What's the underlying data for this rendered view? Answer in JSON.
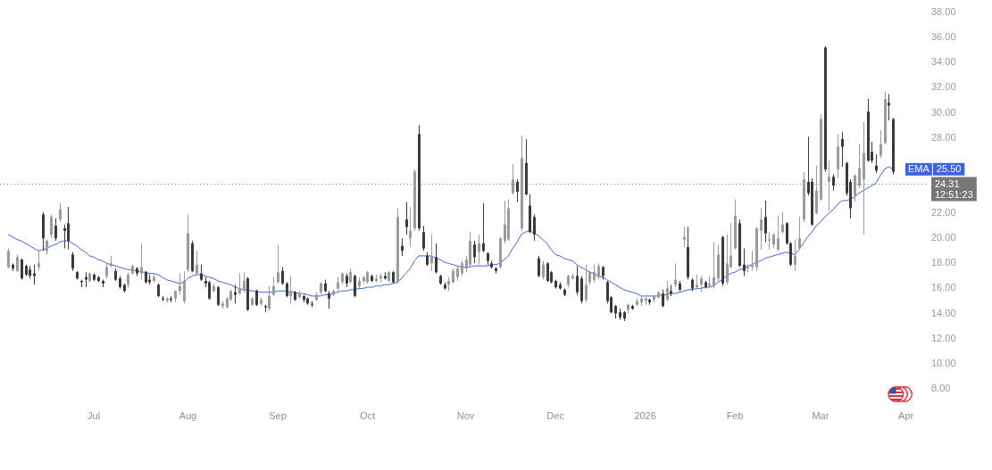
{
  "chart_data": {
    "type": "candlestick",
    "categories": [
      null,
      null,
      null,
      null,
      null,
      null,
      null,
      null,
      null,
      null,
      null,
      null,
      null,
      null,
      null,
      null,
      null,
      null,
      null,
      null,
      "Jul",
      null,
      null,
      null,
      null,
      null,
      null,
      null,
      null,
      null,
      null,
      null,
      null,
      null,
      null,
      null,
      null,
      null,
      null,
      null,
      null,
      null,
      "Aug",
      null,
      null,
      null,
      null,
      null,
      null,
      null,
      null,
      null,
      null,
      null,
      null,
      null,
      null,
      null,
      null,
      null,
      null,
      null,
      null,
      "Sep",
      null,
      null,
      null,
      null,
      null,
      null,
      null,
      null,
      null,
      null,
      null,
      null,
      null,
      null,
      null,
      null,
      null,
      null,
      null,
      null,
      "Oct",
      null,
      null,
      null,
      null,
      null,
      null,
      null,
      null,
      null,
      null,
      null,
      null,
      null,
      null,
      null,
      null,
      null,
      null,
      null,
      null,
      null,
      null,
      "Nov",
      null,
      null,
      null,
      null,
      null,
      null,
      null,
      null,
      null,
      null,
      null,
      null,
      null,
      null,
      null,
      null,
      null,
      null,
      null,
      null,
      "Dec",
      null,
      null,
      null,
      null,
      null,
      null,
      null,
      null,
      null,
      null,
      null,
      null,
      null,
      null,
      null,
      null,
      null,
      null,
      null,
      null,
      "2026",
      null,
      null,
      null,
      null,
      null,
      null,
      null,
      null,
      null,
      null,
      null,
      null,
      null,
      null,
      null,
      null,
      null,
      null,
      null,
      null,
      "Feb",
      null,
      null,
      null,
      null,
      null,
      null,
      null,
      null,
      null,
      null,
      null,
      null,
      null,
      null,
      null,
      null,
      null,
      null,
      null,
      "Mar",
      null,
      null,
      null,
      null,
      null,
      null,
      null,
      null,
      null,
      null,
      null,
      null,
      null,
      null,
      null,
      null,
      null,
      null,
      null,
      "Apr"
    ],
    "ohlc": [
      [
        17.7,
        19.2,
        17.6,
        19.0
      ],
      [
        17.9,
        18.0,
        17.4,
        17.6
      ],
      [
        17.4,
        18.7,
        17.3,
        18.5
      ],
      [
        18.3,
        18.4,
        16.7,
        16.8
      ],
      [
        17.8,
        17.9,
        17.0,
        17.1
      ],
      [
        17.5,
        17.8,
        16.8,
        17.0
      ],
      [
        17.2,
        17.9,
        16.3,
        17.0
      ],
      [
        17.7,
        19.0,
        17.4,
        18.0
      ],
      [
        21.9,
        22.1,
        19.0,
        20.0
      ],
      [
        19.0,
        19.9,
        18.7,
        19.8
      ],
      [
        20.3,
        21.9,
        20.0,
        21.7
      ],
      [
        21.0,
        21.6,
        19.8,
        20.0
      ],
      [
        21.5,
        22.8,
        21.3,
        22.3
      ],
      [
        20.8,
        21.1,
        19.2,
        20.6
      ],
      [
        21.2,
        22.5,
        19.1,
        19.8
      ],
      [
        18.7,
        18.9,
        17.4,
        17.6
      ],
      [
        17.3,
        17.4,
        16.7,
        16.8
      ],
      [
        16.6,
        16.7,
        16.1,
        16.5
      ],
      [
        16.9,
        17.3,
        16.1,
        16.7
      ],
      [
        16.6,
        17.3,
        16.5,
        17.2
      ],
      [
        17.1,
        17.2,
        16.6,
        16.7
      ],
      [
        16.9,
        17.0,
        16.5,
        16.6
      ],
      [
        16.6,
        16.7,
        16.1,
        16.4
      ],
      [
        17.0,
        18.0,
        16.8,
        17.7
      ],
      [
        17.8,
        18.6,
        17.7,
        18.0
      ],
      [
        17.4,
        17.6,
        16.6,
        16.7
      ],
      [
        16.8,
        17.0,
        16.0,
        16.1
      ],
      [
        16.3,
        16.4,
        15.7,
        15.8
      ],
      [
        16.3,
        17.3,
        16.0,
        17.1
      ],
      [
        17.2,
        17.9,
        17.1,
        17.8
      ],
      [
        17.6,
        17.7,
        17.0,
        17.2
      ],
      [
        17.2,
        19.6,
        16.7,
        17.7
      ],
      [
        17.3,
        17.4,
        16.4,
        16.5
      ],
      [
        16.7,
        17.1,
        16.3,
        16.5
      ],
      [
        16.6,
        17.1,
        16.5,
        16.9
      ],
      [
        16.3,
        16.4,
        15.3,
        15.4
      ],
      [
        15.2,
        15.4,
        15.0,
        15.1
      ],
      [
        15.0,
        15.3,
        14.9,
        15.2
      ],
      [
        15.2,
        15.4,
        14.9,
        15.1
      ],
      [
        15.2,
        15.8,
        14.9,
        15.8
      ],
      [
        15.8,
        17.2,
        15.5,
        16.2
      ],
      [
        15.0,
        17.4,
        14.8,
        16.6
      ],
      [
        17.5,
        21.9,
        17.3,
        20.4
      ],
      [
        19.6,
        19.8,
        17.3,
        17.4
      ],
      [
        17.2,
        19.0,
        17.1,
        17.9
      ],
      [
        17.2,
        17.9,
        16.6,
        16.7
      ],
      [
        16.6,
        16.9,
        16.1,
        16.4
      ],
      [
        16.5,
        16.6,
        15.1,
        15.2
      ],
      [
        15.8,
        16.4,
        15.7,
        16.2
      ],
      [
        16.1,
        16.2,
        14.6,
        14.7
      ],
      [
        14.6,
        15.0,
        14.4,
        14.8
      ],
      [
        14.5,
        15.3,
        14.4,
        15.2
      ],
      [
        15.1,
        15.9,
        15.0,
        15.8
      ],
      [
        15.7,
        16.3,
        14.8,
        15.5
      ],
      [
        15.6,
        17.2,
        15.5,
        16.0
      ],
      [
        15.8,
        17.3,
        15.7,
        16.6
      ],
      [
        16.8,
        16.9,
        14.2,
        14.3
      ],
      [
        14.7,
        15.3,
        14.6,
        15.2
      ],
      [
        15.8,
        15.9,
        14.6,
        14.7
      ],
      [
        14.8,
        15.3,
        14.6,
        15.1
      ],
      [
        14.6,
        14.7,
        14.1,
        14.5
      ],
      [
        14.4,
        16.2,
        14.2,
        15.4
      ],
      [
        15.5,
        16.9,
        15.4,
        16.2
      ],
      [
        16.5,
        19.5,
        16.4,
        17.3
      ],
      [
        17.4,
        17.7,
        16.3,
        16.4
      ],
      [
        16.4,
        16.5,
        15.3,
        15.4
      ],
      [
        15.4,
        17.0,
        14.8,
        15.8
      ],
      [
        15.7,
        15.8,
        15.0,
        15.1
      ],
      [
        15.3,
        15.8,
        15.2,
        15.6
      ],
      [
        15.4,
        15.5,
        14.9,
        15.1
      ],
      [
        15.2,
        15.3,
        14.7,
        14.8
      ],
      [
        14.8,
        15.0,
        14.5,
        14.7
      ],
      [
        15.1,
        15.7,
        15.0,
        15.5
      ],
      [
        15.7,
        16.5,
        15.5,
        16.4
      ],
      [
        16.4,
        16.7,
        15.7,
        15.8
      ],
      [
        15.6,
        15.8,
        14.4,
        15.2
      ],
      [
        15.5,
        15.9,
        15.4,
        15.8
      ],
      [
        16.0,
        16.9,
        15.8,
        16.5
      ],
      [
        16.5,
        17.3,
        16.3,
        17.2
      ],
      [
        17.0,
        17.2,
        16.1,
        16.4
      ],
      [
        16.5,
        17.6,
        16.4,
        17.3
      ],
      [
        17.0,
        17.1,
        15.3,
        15.4
      ],
      [
        16.2,
        16.9,
        16.0,
        16.6
      ],
      [
        16.6,
        17.0,
        16.4,
        16.9
      ],
      [
        16.5,
        17.4,
        16.4,
        17.3
      ],
      [
        17.0,
        17.1,
        16.5,
        16.6
      ],
      [
        16.6,
        17.1,
        16.5,
        16.8
      ],
      [
        16.8,
        17.2,
        16.5,
        17.0
      ],
      [
        17.0,
        17.3,
        16.7,
        16.8
      ],
      [
        16.6,
        17.4,
        16.5,
        17.3
      ],
      [
        17.3,
        17.4,
        16.4,
        16.5
      ],
      [
        16.5,
        22.4,
        16.4,
        21.7
      ],
      [
        19.4,
        20.0,
        18.6,
        19.0
      ],
      [
        21.5,
        22.9,
        20.3,
        20.9
      ],
      [
        20.0,
        22.5,
        19.3,
        20.6
      ],
      [
        20.8,
        25.5,
        20.6,
        25.3
      ],
      [
        28.3,
        29.0,
        20.6,
        20.8
      ],
      [
        20.5,
        21.0,
        19.0,
        19.2
      ],
      [
        18.6,
        18.9,
        17.8,
        17.9
      ],
      [
        18.0,
        20.3,
        17.4,
        18.6
      ],
      [
        18.5,
        19.6,
        17.2,
        17.3
      ],
      [
        17.0,
        17.1,
        16.3,
        16.4
      ],
      [
        16.3,
        16.5,
        15.9,
        16.0
      ],
      [
        16.3,
        16.9,
        15.8,
        16.6
      ],
      [
        16.5,
        17.6,
        16.4,
        17.4
      ],
      [
        16.9,
        17.8,
        16.6,
        17.6
      ],
      [
        17.2,
        18.2,
        17.0,
        18.0
      ],
      [
        17.6,
        18.6,
        17.3,
        18.3
      ],
      [
        17.9,
        20.5,
        17.7,
        19.8
      ],
      [
        19.5,
        19.8,
        18.0,
        18.5
      ],
      [
        18.9,
        20.3,
        17.9,
        19.6
      ],
      [
        19.6,
        22.8,
        18.9,
        19.0
      ],
      [
        18.8,
        18.9,
        17.9,
        18.2
      ],
      [
        18.0,
        18.2,
        17.6,
        17.7
      ],
      [
        17.6,
        17.7,
        17.2,
        17.4
      ],
      [
        17.7,
        20.1,
        17.6,
        20.0
      ],
      [
        19.8,
        23.0,
        19.6,
        21.1
      ],
      [
        19.9,
        23.1,
        19.8,
        22.4
      ],
      [
        23.6,
        25.9,
        23.5,
        24.7
      ],
      [
        24.5,
        24.7,
        22.9,
        23.7
      ],
      [
        20.8,
        28.2,
        20.6,
        26.4
      ],
      [
        26.0,
        27.9,
        23.4,
        23.5
      ],
      [
        22.6,
        23.5,
        20.4,
        20.5
      ],
      [
        21.7,
        21.9,
        19.8,
        20.3
      ],
      [
        18.4,
        18.6,
        16.9,
        17.0
      ],
      [
        16.9,
        18.2,
        16.7,
        17.9
      ],
      [
        18.0,
        18.1,
        16.5,
        16.6
      ],
      [
        17.3,
        17.4,
        16.4,
        16.5
      ],
      [
        16.6,
        16.7,
        16.0,
        16.1
      ],
      [
        16.3,
        16.5,
        15.9,
        16.0
      ],
      [
        15.9,
        16.0,
        15.4,
        15.5
      ],
      [
        16.3,
        17.1,
        16.1,
        17.0
      ],
      [
        16.8,
        17.2,
        16.7,
        17.0
      ],
      [
        17.0,
        17.8,
        15.5,
        15.7
      ],
      [
        16.8,
        17.0,
        14.8,
        15.0
      ],
      [
        15.1,
        17.9,
        14.9,
        16.3
      ],
      [
        16.5,
        17.4,
        16.3,
        17.3
      ],
      [
        16.7,
        17.9,
        16.5,
        17.3
      ],
      [
        16.9,
        18.0,
        16.7,
        17.8
      ],
      [
        17.7,
        17.8,
        16.7,
        17.0
      ],
      [
        16.5,
        16.6,
        14.8,
        15.0
      ],
      [
        15.3,
        15.4,
        14.0,
        14.1
      ],
      [
        14.6,
        14.7,
        13.6,
        14.0
      ],
      [
        14.1,
        14.4,
        13.5,
        13.7
      ],
      [
        14.1,
        14.2,
        13.4,
        13.6
      ],
      [
        14.3,
        14.8,
        14.0,
        14.7
      ],
      [
        14.6,
        14.7,
        14.3,
        14.4
      ],
      [
        14.7,
        15.2,
        14.6,
        15.0
      ],
      [
        14.9,
        15.4,
        14.6,
        15.2
      ],
      [
        15.0,
        15.3,
        14.7,
        15.2
      ],
      [
        15.1,
        15.2,
        14.7,
        14.9
      ],
      [
        15.1,
        15.5,
        14.9,
        15.4
      ],
      [
        15.3,
        15.8,
        15.2,
        15.7
      ],
      [
        15.6,
        15.9,
        14.5,
        14.6
      ],
      [
        15.1,
        16.6,
        15.0,
        16.0
      ],
      [
        15.8,
        16.3,
        15.4,
        15.6
      ],
      [
        16.3,
        18.0,
        16.1,
        16.7
      ],
      [
        16.4,
        16.6,
        15.8,
        15.9
      ],
      [
        19.9,
        20.9,
        19.3,
        20.1
      ],
      [
        19.3,
        20.9,
        16.7,
        16.9
      ],
      [
        16.7,
        16.8,
        15.8,
        16.0
      ],
      [
        16.1,
        17.1,
        15.9,
        16.3
      ],
      [
        16.3,
        17.0,
        15.7,
        16.8
      ],
      [
        16.5,
        16.6,
        16.0,
        16.1
      ],
      [
        16.2,
        17.0,
        16.1,
        16.4
      ],
      [
        16.2,
        19.7,
        16.0,
        16.9
      ],
      [
        16.8,
        19.5,
        16.6,
        18.7
      ],
      [
        20.1,
        20.2,
        16.2,
        16.4
      ],
      [
        16.5,
        20.3,
        16.3,
        18.0
      ],
      [
        17.7,
        21.2,
        17.6,
        18.6
      ],
      [
        19.2,
        23.1,
        19.1,
        21.8
      ],
      [
        21.2,
        21.5,
        17.7,
        17.8
      ],
      [
        17.9,
        19.2,
        17.0,
        17.4
      ],
      [
        17.6,
        17.9,
        17.3,
        17.8
      ],
      [
        17.7,
        19.0,
        17.4,
        17.9
      ],
      [
        17.7,
        20.9,
        17.4,
        20.8
      ],
      [
        20.6,
        22.4,
        19.1,
        21.5
      ],
      [
        21.7,
        23.0,
        19.7,
        20.4
      ],
      [
        19.8,
        20.5,
        19.1,
        19.9
      ],
      [
        19.5,
        20.4,
        19.2,
        20.3
      ],
      [
        19.1,
        21.8,
        19.0,
        20.0
      ],
      [
        20.5,
        22.1,
        20.4,
        21.1
      ],
      [
        21.2,
        21.3,
        19.5,
        19.6
      ],
      [
        19.6,
        19.7,
        17.8,
        17.9
      ],
      [
        17.9,
        19.9,
        17.4,
        18.6
      ],
      [
        19.2,
        21.7,
        19.1,
        20.0
      ],
      [
        21.5,
        25.3,
        21.3,
        24.7
      ],
      [
        24.5,
        28.1,
        23.4,
        23.6
      ],
      [
        24.5,
        24.8,
        21.0,
        21.1
      ],
      [
        22.0,
        25.8,
        21.9,
        23.8
      ],
      [
        23.1,
        29.9,
        23.0,
        29.5
      ],
      [
        35.2,
        35.3,
        25.3,
        25.5
      ],
      [
        24.5,
        26.2,
        22.2,
        24.9
      ],
      [
        24.9,
        25.1,
        23.8,
        24.2
      ],
      [
        25.5,
        28.3,
        24.8,
        27.3
      ],
      [
        27.9,
        28.5,
        25.7,
        27.3
      ],
      [
        26.0,
        26.1,
        23.4,
        23.6
      ],
      [
        24.5,
        24.7,
        21.6,
        22.4
      ],
      [
        23.4,
        25.1,
        22.9,
        25.0
      ],
      [
        24.2,
        27.5,
        24.0,
        25.6
      ],
      [
        24.7,
        29.3,
        20.3,
        26.8
      ],
      [
        30.1,
        31.1,
        26.1,
        26.2
      ],
      [
        26.9,
        27.7,
        26.0,
        26.2
      ],
      [
        25.8,
        26.7,
        25.2,
        25.4
      ],
      [
        26.6,
        28.6,
        26.4,
        27.5
      ],
      [
        27.6,
        31.7,
        27.5,
        31.1
      ],
      [
        30.8,
        31.5,
        29.4,
        30.6
      ],
      [
        29.5,
        29.6,
        25.1,
        25.3
      ],
      null,
      null,
      null
    ],
    "colors": [
      "#9b9b9b",
      "#3a3a3a",
      "#9b9b9b",
      "#3a3a3a",
      "#3a3a3a",
      "#3a3a3a",
      "#3a3a3a",
      "#9b9b9b",
      "#3a3a3a",
      "#9b9b9b",
      "#9b9b9b",
      "#3a3a3a",
      "#9b9b9b",
      "#3a3a3a",
      "#3a3a3a",
      "#3a3a3a",
      "#3a3a3a",
      "#3a3a3a",
      "#3a3a3a",
      "#9b9b9b",
      "#3a3a3a",
      "#3a3a3a",
      "#3a3a3a",
      "#9b9b9b",
      "#9b9b9b",
      "#3a3a3a",
      "#3a3a3a",
      "#3a3a3a",
      "#9b9b9b",
      "#9b9b9b",
      "#3a3a3a",
      "#9b9b9b",
      "#3a3a3a",
      "#3a3a3a",
      "#9b9b9b",
      "#3a3a3a",
      "#3a3a3a",
      "#9b9b9b",
      "#3a3a3a",
      "#9b9b9b",
      "#9b9b9b",
      "#9b9b9b",
      "#9b9b9b",
      "#3a3a3a",
      "#9b9b9b",
      "#3a3a3a",
      "#3a3a3a",
      "#3a3a3a",
      "#9b9b9b",
      "#3a3a3a",
      "#9b9b9b",
      "#9b9b9b",
      "#9b9b9b",
      "#3a3a3a",
      "#9b9b9b",
      "#9b9b9b",
      "#3a3a3a",
      "#9b9b9b",
      "#3a3a3a",
      "#9b9b9b",
      "#3a3a3a",
      "#9b9b9b",
      "#9b9b9b",
      "#9b9b9b",
      "#3a3a3a",
      "#3a3a3a",
      "#9b9b9b",
      "#3a3a3a",
      "#9b9b9b",
      "#3a3a3a",
      "#3a3a3a",
      "#3a3a3a",
      "#9b9b9b",
      "#9b9b9b",
      "#3a3a3a",
      "#3a3a3a",
      "#9b9b9b",
      "#9b9b9b",
      "#9b9b9b",
      "#3a3a3a",
      "#9b9b9b",
      "#3a3a3a",
      "#9b9b9b",
      "#9b9b9b",
      "#9b9b9b",
      "#3a3a3a",
      "#9b9b9b",
      "#9b9b9b",
      "#3a3a3a",
      "#9b9b9b",
      "#3a3a3a",
      "#9b9b9b",
      "#3a3a3a",
      "#3a3a3a",
      "#9b9b9b",
      "#9b9b9b",
      "#3a3a3a",
      "#3a3a3a",
      "#3a3a3a",
      "#9b9b9b",
      "#3a3a3a",
      "#3a3a3a",
      "#3a3a3a",
      "#9b9b9b",
      "#9b9b9b",
      "#9b9b9b",
      "#9b9b9b",
      "#9b9b9b",
      "#9b9b9b",
      "#3a3a3a",
      "#9b9b9b",
      "#3a3a3a",
      "#3a3a3a",
      "#3a3a3a",
      "#3a3a3a",
      "#9b9b9b",
      "#9b9b9b",
      "#9b9b9b",
      "#9b9b9b",
      "#3a3a3a",
      "#9b9b9b",
      "#3a3a3a",
      "#3a3a3a",
      "#3a3a3a",
      "#3a3a3a",
      "#9b9b9b",
      "#3a3a3a",
      "#3a3a3a",
      "#3a3a3a",
      "#3a3a3a",
      "#3a3a3a",
      "#9b9b9b",
      "#9b9b9b",
      "#3a3a3a",
      "#3a3a3a",
      "#9b9b9b",
      "#9b9b9b",
      "#9b9b9b",
      "#9b9b9b",
      "#3a3a3a",
      "#3a3a3a",
      "#3a3a3a",
      "#3a3a3a",
      "#3a3a3a",
      "#3a3a3a",
      "#9b9b9b",
      "#3a3a3a",
      "#9b9b9b",
      "#9b9b9b",
      "#9b9b9b",
      "#3a3a3a",
      "#9b9b9b",
      "#9b9b9b",
      "#3a3a3a",
      "#9b9b9b",
      "#3a3a3a",
      "#9b9b9b",
      "#3a3a3a",
      "#9b9b9b",
      "#3a3a3a",
      "#3a3a3a",
      "#9b9b9b",
      "#9b9b9b",
      "#3a3a3a",
      "#9b9b9b",
      "#9b9b9b",
      "#9b9b9b",
      "#3a3a3a",
      "#9b9b9b",
      "#9b9b9b",
      "#9b9b9b",
      "#3a3a3a",
      "#3a3a3a",
      "#9b9b9b",
      "#9b9b9b",
      "#9b9b9b",
      "#9b9b9b",
      "#3a3a3a",
      "#9b9b9b",
      "#9b9b9b",
      "#9b9b9b",
      "#9b9b9b",
      "#3a3a3a",
      "#3a3a3a",
      "#9b9b9b",
      "#9b9b9b",
      "#9b9b9b",
      "#3a3a3a",
      "#3a3a3a",
      "#9b9b9b",
      "#9b9b9b",
      "#3a3a3a",
      "#9b9b9b",
      "#3a3a3a",
      "#9b9b9b",
      "#3a3a3a",
      "#3a3a3a",
      "#3a3a3a",
      "#9b9b9b",
      "#9b9b9b",
      "#9b9b9b",
      "#3a3a3a",
      "#3a3a3a",
      "#3a3a3a",
      "#9b9b9b",
      "#9b9b9b",
      "#3a3a3a",
      "#3a3a3a",
      null,
      null,
      null
    ],
    "series": [
      {
        "type": "line",
        "name": "EMA",
        "color": "#3d64e0",
        "values": [
          20.3,
          20.1,
          19.9,
          19.8,
          19.6,
          19.4,
          19.2,
          19.0,
          19.1,
          19.2,
          19.4,
          19.5,
          19.7,
          19.8,
          19.8,
          19.6,
          19.4,
          19.1,
          18.9,
          18.6,
          18.5,
          18.3,
          18.2,
          18.0,
          17.9,
          17.8,
          17.7,
          17.6,
          17.5,
          17.5,
          17.4,
          17.3,
          17.3,
          17.2,
          17.2,
          17.1,
          16.9,
          16.7,
          16.6,
          16.5,
          16.4,
          16.5,
          16.8,
          17.0,
          17.1,
          17.1,
          17.0,
          16.9,
          16.8,
          16.6,
          16.5,
          16.4,
          16.3,
          16.1,
          16.0,
          15.9,
          15.9,
          15.8,
          15.8,
          15.7,
          15.7,
          15.7,
          15.7,
          15.8,
          15.8,
          15.8,
          15.7,
          15.7,
          15.6,
          15.6,
          15.5,
          15.4,
          15.4,
          15.4,
          15.5,
          15.5,
          15.6,
          15.7,
          15.8,
          15.8,
          15.9,
          15.9,
          16.0,
          16.0,
          16.1,
          16.1,
          16.2,
          16.2,
          16.3,
          16.3,
          16.4,
          16.5,
          16.8,
          17.2,
          17.6,
          18.2,
          18.6,
          18.6,
          18.6,
          18.6,
          18.4,
          18.3,
          18.1,
          18.0,
          17.9,
          17.8,
          17.7,
          17.7,
          17.7,
          17.8,
          17.8,
          17.8,
          17.8,
          17.9,
          17.9,
          18.0,
          18.3,
          18.6,
          19.2,
          19.7,
          20.3,
          20.5,
          20.6,
          20.4,
          20.2,
          19.9,
          19.6,
          19.1,
          18.7,
          18.6,
          18.4,
          18.3,
          18.2,
          17.9,
          17.7,
          17.5,
          17.3,
          17.2,
          17.0,
          16.9,
          16.7,
          16.5,
          16.3,
          16.1,
          15.9,
          15.8,
          15.7,
          15.6,
          15.4,
          15.4,
          15.4,
          15.4,
          15.4,
          15.5,
          15.5,
          15.6,
          15.6,
          15.7,
          15.8,
          15.9,
          15.9,
          16.0,
          16.0,
          16.1,
          16.1,
          16.2,
          16.5,
          16.7,
          17.0,
          17.2,
          17.3,
          17.5,
          17.6,
          17.8,
          17.9,
          18.1,
          18.2,
          18.4,
          18.5,
          18.6,
          18.7,
          18.8,
          18.9,
          18.8,
          18.7,
          19.1,
          19.6,
          20.1,
          20.5,
          21.0,
          21.3,
          21.7,
          22.0,
          22.3,
          22.7,
          23.0,
          23.0,
          23.1,
          23.3,
          23.6,
          23.8,
          24.0,
          24.2,
          24.4,
          25.0,
          25.5,
          25.7,
          25.5,
          null,
          null,
          null
        ]
      }
    ],
    "ylim": [
      8,
      38
    ],
    "yticks": [
      {
        "value": 8,
        "label": "8.00"
      },
      {
        "value": 10,
        "label": "10.00"
      },
      {
        "value": 12,
        "label": "12.00"
      },
      {
        "value": 14,
        "label": "14.00"
      },
      {
        "value": 16,
        "label": "16.00"
      },
      {
        "value": 18,
        "label": "18.00"
      },
      {
        "value": 20,
        "label": "20.00"
      },
      {
        "value": 22,
        "label": "22.00"
      },
      {
        "value": 28,
        "label": "28.00"
      },
      {
        "value": 30,
        "label": "30.00"
      },
      {
        "value": 32,
        "label": "32.00"
      },
      {
        "value": 34,
        "label": "34.00"
      },
      {
        "value": 36,
        "label": "36.00"
      },
      {
        "value": 38,
        "label": "38.00"
      }
    ],
    "ref_lines": [
      {
        "axis": "y",
        "value": 24.31,
        "label": "24.31\n12:51:23",
        "line_style": "dotted",
        "color": "#777777"
      }
    ],
    "annotations": [
      "25.50"
    ]
  }
}
